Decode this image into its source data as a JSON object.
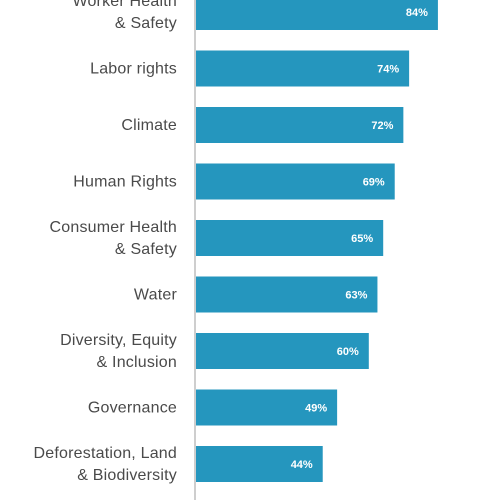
{
  "chart_data": {
    "type": "bar",
    "orientation": "horizontal",
    "categories": [
      [
        "Worker Health",
        "& Safety"
      ],
      [
        "Labor rights"
      ],
      [
        "Climate"
      ],
      [
        "Human Rights"
      ],
      [
        "Consumer Health",
        "& Safety"
      ],
      [
        "Water"
      ],
      [
        "Diversity, Equity",
        "& Inclusion"
      ],
      [
        "Governance"
      ],
      [
        "Deforestation, Land",
        "& Biodiversity"
      ]
    ],
    "values": [
      84,
      74,
      72,
      69,
      65,
      63,
      60,
      49,
      44
    ],
    "value_labels": [
      "84%",
      "74%",
      "72%",
      "69%",
      "65%",
      "63%",
      "60%",
      "49%",
      "44%"
    ],
    "xlim": [
      0,
      100
    ],
    "grid": false,
    "bar_color": "#2596be",
    "axis_color": "#bdbdbd"
  }
}
